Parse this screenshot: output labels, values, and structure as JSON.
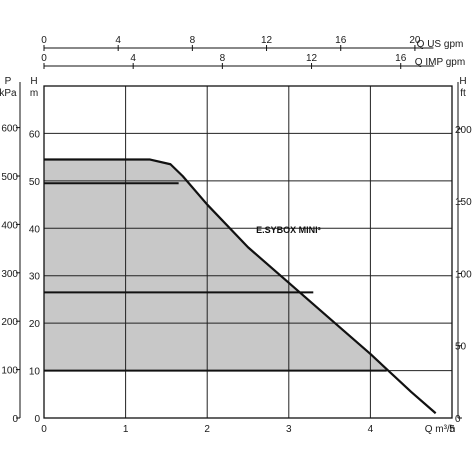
{
  "chart_data": {
    "type": "area",
    "model_label": "E.SYBOX MINI³",
    "axes": {
      "x_bottom": {
        "label": "Q m³/h",
        "min": 0,
        "max": 5,
        "ticks": [
          "0",
          "1",
          "2",
          "3",
          "4",
          "5"
        ]
      },
      "x_top_us": {
        "label": "Q US gpm",
        "min": 0,
        "max": 22.0,
        "ticks": [
          "0",
          "4",
          "8",
          "12",
          "16",
          "20"
        ]
      },
      "x_top_imp": {
        "label": "Q IMP gpm",
        "min": 0,
        "max": 18.3,
        "ticks": [
          "0",
          "4",
          "8",
          "12",
          "16"
        ]
      },
      "y_left_m": {
        "label": [
          "H",
          "m"
        ],
        "min": 0,
        "max": 70,
        "ticks": [
          "0",
          "10",
          "20",
          "30",
          "40",
          "50",
          "60"
        ]
      },
      "y_left_kpa": {
        "label": [
          "P",
          "kPa"
        ],
        "min": 0,
        "max": 686,
        "ticks": [
          "0",
          "100",
          "200",
          "300",
          "400",
          "500",
          "600"
        ]
      },
      "y_right_ft": {
        "label": [
          "H",
          "ft"
        ],
        "min": 0,
        "max": 229.7,
        "ticks": [
          "0",
          "50",
          "100",
          "150",
          "200"
        ]
      }
    },
    "grid": true,
    "series": [
      {
        "type": "max-curve",
        "x": [
          0,
          1.3,
          1.55,
          1.7,
          2.0,
          2.5,
          3.0,
          3.5,
          4.0,
          4.5,
          4.8
        ],
        "y": [
          54.5,
          54.5,
          53.5,
          51,
          45,
          36,
          28.5,
          21,
          13.5,
          5.5,
          1
        ]
      },
      {
        "type": "setpoint",
        "y": 49.5,
        "x_end": 1.65
      },
      {
        "type": "setpoint",
        "y": 26.5,
        "x_end": 3.3
      },
      {
        "type": "setpoint",
        "y": 10,
        "x_end": 4.2
      }
    ],
    "shaded_region": {
      "top_y": 54.5,
      "bottom_y": 10,
      "x_end_at_bottom": 4.2
    }
  }
}
